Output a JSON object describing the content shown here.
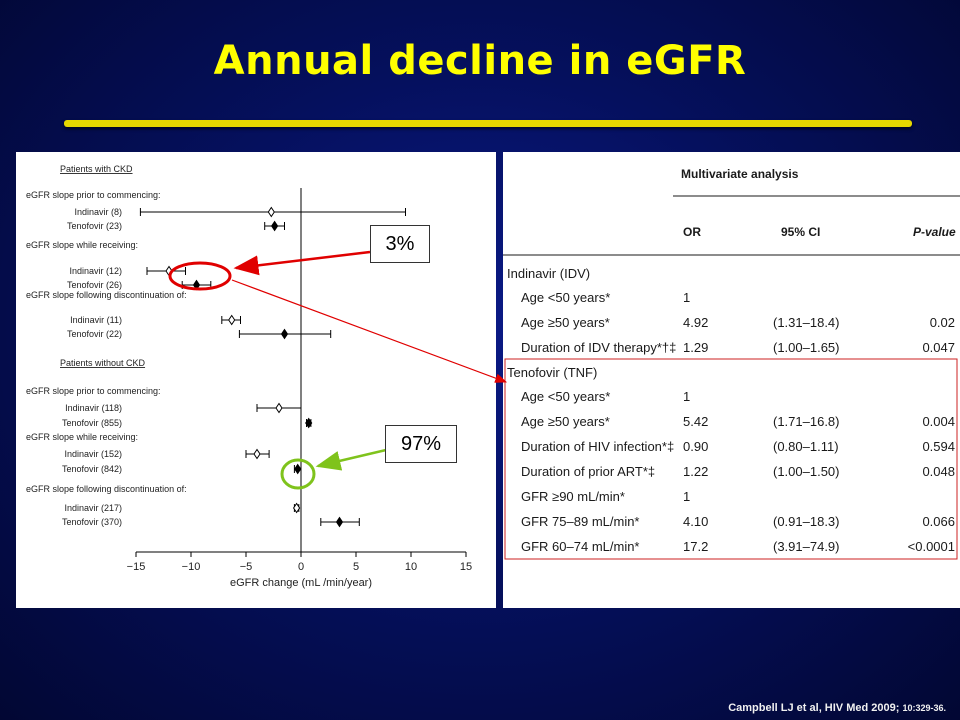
{
  "title": "Annual decline in eGFR",
  "citation": {
    "authors_journal": "Campbell LJ et al, HIV Med 2009;",
    "volume_pages": "10:329-36."
  },
  "callouts": {
    "ckd_pct": "3%",
    "non_ckd_pct": "97%"
  },
  "colors": {
    "title": "#ffff00",
    "background": "#05105e",
    "arrow_red": "#e00000",
    "arrow_green": "#7fc31c"
  },
  "chart_data": {
    "type": "forest",
    "xlabel": "eGFR change (mL /min/year)",
    "xlim": [
      -15,
      15
    ],
    "xticks": [
      "−15",
      "−10",
      "−5",
      "0",
      "5",
      "10",
      "15"
    ],
    "groups": [
      {
        "header": "Patients with CKD",
        "subgroups": [
          {
            "label": "eGFR slope prior to commencing:",
            "rows": [
              {
                "label": "Indinavir (8)",
                "est": -2.7,
                "lo": -14.6,
                "hi": 9.5,
                "marker": "open"
              },
              {
                "label": "Tenofovir (23)",
                "est": -2.4,
                "lo": -3.3,
                "hi": -1.5,
                "marker": "filled"
              }
            ]
          },
          {
            "label": "eGFR slope while receiving:",
            "rows": [
              {
                "label": "Indinavir (12)",
                "est": -12.0,
                "lo": -14.0,
                "hi": -10.5,
                "marker": "open"
              },
              {
                "label": "Tenofovir (26)",
                "est": -9.5,
                "lo": -10.8,
                "hi": -8.2,
                "marker": "filled"
              }
            ]
          },
          {
            "label": "eGFR slope following discontinuation of:",
            "rows": [
              {
                "label": "Indinavir (11)",
                "est": -6.3,
                "lo": -7.2,
                "hi": -5.5,
                "marker": "open"
              },
              {
                "label": "Tenofovir (22)",
                "est": -1.5,
                "lo": -5.6,
                "hi": 2.7,
                "marker": "filled"
              }
            ]
          }
        ]
      },
      {
        "header": "Patients without CKD",
        "subgroups": [
          {
            "label": "eGFR slope prior to commencing:",
            "rows": [
              {
                "label": "Indinavir (118)",
                "est": -2.0,
                "lo": -4.0,
                "hi": 0.0,
                "marker": "open"
              },
              {
                "label": "Tenofovir (855)",
                "est": 0.7,
                "lo": 0.5,
                "hi": 0.9,
                "marker": "filled"
              }
            ]
          },
          {
            "label": "eGFR slope while receiving:",
            "rows": [
              {
                "label": "Indinavir (152)",
                "est": -4.0,
                "lo": -5.0,
                "hi": -2.9,
                "marker": "open"
              },
              {
                "label": "Tenofovir (842)",
                "est": -0.3,
                "lo": -0.6,
                "hi": 0.0,
                "marker": "filled"
              }
            ]
          },
          {
            "label": "eGFR slope following discontinuation of:",
            "rows": [
              {
                "label": "Indinavir (217)",
                "est": -0.4,
                "lo": -0.6,
                "hi": -0.2,
                "marker": "open"
              },
              {
                "label": "Tenofovir (370)",
                "est": 3.5,
                "lo": 1.8,
                "hi": 5.3,
                "marker": "filled"
              }
            ]
          }
        ]
      }
    ]
  },
  "table": {
    "title": "Multivariate analysis",
    "headers": [
      "OR",
      "95% CI",
      "P-value"
    ],
    "sections": [
      {
        "label": "Indinavir (IDV)",
        "rows": [
          {
            "label": "Age <50 years*",
            "or": "1",
            "ci": "",
            "p": ""
          },
          {
            "label": "Age ≥50 years*",
            "or": "4.92",
            "ci": "(1.31–18.4)",
            "p": "0.02"
          },
          {
            "label": "Duration of IDV therapy*†‡",
            "or": "1.29",
            "ci": "(1.00–1.65)",
            "p": "0.047"
          }
        ]
      },
      {
        "label": "Tenofovir (TNF)",
        "rows": [
          {
            "label": "Age <50 years*",
            "or": "1",
            "ci": "",
            "p": ""
          },
          {
            "label": "Age ≥50 years*",
            "or": "5.42",
            "ci": "(1.71–16.8)",
            "p": "0.004"
          },
          {
            "label": "Duration of HIV infection*‡",
            "or": "0.90",
            "ci": "(0.80–1.11)",
            "p": "0.594"
          },
          {
            "label": "Duration of prior ART*‡",
            "or": "1.22",
            "ci": "(1.00–1.50)",
            "p": "0.048"
          },
          {
            "label": "GFR ≥90 mL/min*",
            "or": "1",
            "ci": "",
            "p": ""
          },
          {
            "label": "GFR 75–89 mL/min*",
            "or": "4.10",
            "ci": "(0.91–18.3)",
            "p": "0.066"
          },
          {
            "label": "GFR 60–74 mL/min*",
            "or": "17.2",
            "ci": "(3.91–74.9)",
            "p": "<0.0001"
          }
        ]
      }
    ]
  }
}
